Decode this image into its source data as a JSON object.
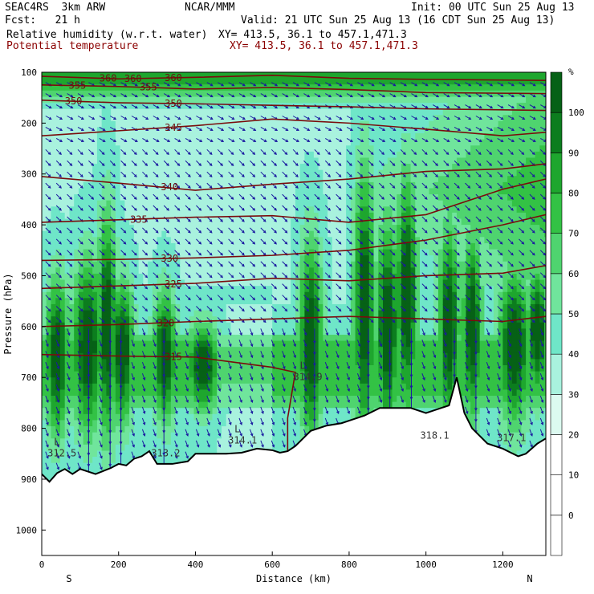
{
  "header": {
    "model": "SEAC4RS  3km ARW",
    "org": "NCAR/MMM",
    "init": "Init: 00 UTC Sun 25 Aug 13",
    "fcst": "Fcst:   21 h",
    "valid": "Valid: 21 UTC Sun 25 Aug 13 (16 CDT Sun 25 Aug 13)",
    "field1": "Relative humidity (w.r.t. water)",
    "xy1": "XY= 413.5, 36.1 to 457.1,471.3",
    "field2": "Potential temperature",
    "xy2": "XY= 413.5, 36.1 to 457.1,471.3"
  },
  "chart_data": {
    "type": "heatmap",
    "title": "Relative humidity (w.r.t. water) / Potential temperature cross section",
    "xlabel": "Distance (km)",
    "ylabel": "Pressure (hPa)",
    "xlim": [
      0,
      1312
    ],
    "ylim": [
      1050,
      100
    ],
    "x_ticks": [
      0,
      200,
      400,
      600,
      800,
      1000,
      1200
    ],
    "y_ticks": [
      100,
      200,
      300,
      400,
      500,
      600,
      700,
      800,
      900,
      1000
    ],
    "x_end_labels": {
      "left": "S",
      "right": "N"
    },
    "colorbar": {
      "unit": "%",
      "levels": [
        0,
        10,
        20,
        30,
        40,
        50,
        60,
        70,
        80,
        90,
        100
      ],
      "colors": {
        "30": "#dcfaf0",
        "40": "#a9f2de",
        "50": "#6fe6c8",
        "60": "#70e59c",
        "70": "#4fd46f",
        "80": "#33c245",
        "90": "#1ea62e",
        "100": "#0c7d1e",
        "110": "#066116"
      }
    },
    "theta_isentropes_K": [
      {
        "value": 360,
        "labels": [
          "360",
          "360",
          "360"
        ]
      },
      {
        "value": 355,
        "labels": [
          "355",
          "355"
        ]
      },
      {
        "value": 350,
        "labels": [
          "350",
          "350"
        ]
      },
      {
        "value": 345,
        "labels": [
          "345"
        ]
      },
      {
        "value": 340,
        "labels": [
          "340"
        ]
      },
      {
        "value": 335,
        "labels": [
          "335"
        ]
      },
      {
        "value": 330,
        "labels": [
          "330"
        ]
      },
      {
        "value": 325,
        "labels": [
          "325"
        ]
      },
      {
        "value": 320,
        "labels": [
          "320"
        ]
      },
      {
        "value": 315,
        "labels": [
          "315",
          "314.9"
        ]
      }
    ],
    "lows": [
      {
        "label": "L",
        "value": "312.5",
        "x_km": 40,
        "p_hPa": 855
      },
      {
        "label": "",
        "value": "313.2",
        "x_km": 310,
        "p_hPa": 855
      },
      {
        "label": "L",
        "value": "314.1",
        "x_km": 510,
        "p_hPa": 830
      },
      {
        "label": "L",
        "value": "314.9",
        "x_km": 680,
        "p_hPa": 705
      },
      {
        "label": "",
        "value": "318.1",
        "x_km": 1010,
        "p_hPa": 820
      },
      {
        "label": "",
        "value": "317.1",
        "x_km": 1210,
        "p_hPa": 825
      }
    ],
    "terrain_surface_hPa": [
      [
        0,
        890
      ],
      [
        20,
        905
      ],
      [
        40,
        888
      ],
      [
        60,
        880
      ],
      [
        80,
        890
      ],
      [
        100,
        880
      ],
      [
        140,
        890
      ],
      [
        180,
        878
      ],
      [
        200,
        870
      ],
      [
        220,
        873
      ],
      [
        240,
        860
      ],
      [
        260,
        855
      ],
      [
        280,
        845
      ],
      [
        300,
        870
      ],
      [
        340,
        870
      ],
      [
        380,
        865
      ],
      [
        400,
        850
      ],
      [
        440,
        850
      ],
      [
        480,
        850
      ],
      [
        520,
        848
      ],
      [
        560,
        840
      ],
      [
        600,
        843
      ],
      [
        620,
        848
      ],
      [
        640,
        845
      ],
      [
        660,
        835
      ],
      [
        700,
        805
      ],
      [
        740,
        795
      ],
      [
        780,
        790
      ],
      [
        800,
        785
      ],
      [
        840,
        775
      ],
      [
        880,
        760
      ],
      [
        920,
        760
      ],
      [
        960,
        760
      ],
      [
        1000,
        770
      ],
      [
        1040,
        760
      ],
      [
        1060,
        755
      ],
      [
        1080,
        700
      ],
      [
        1100,
        770
      ],
      [
        1120,
        800
      ],
      [
        1160,
        830
      ],
      [
        1200,
        840
      ],
      [
        1240,
        855
      ],
      [
        1260,
        850
      ],
      [
        1290,
        830
      ],
      [
        1312,
        820
      ]
    ]
  }
}
